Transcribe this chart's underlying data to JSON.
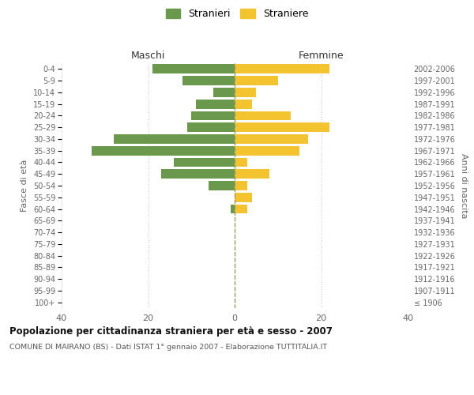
{
  "age_groups": [
    "100+",
    "95-99",
    "90-94",
    "85-89",
    "80-84",
    "75-79",
    "70-74",
    "65-69",
    "60-64",
    "55-59",
    "50-54",
    "45-49",
    "40-44",
    "35-39",
    "30-34",
    "25-29",
    "20-24",
    "15-19",
    "10-14",
    "5-9",
    "0-4"
  ],
  "birth_years": [
    "≤ 1906",
    "1907-1911",
    "1912-1916",
    "1917-1921",
    "1922-1926",
    "1927-1931",
    "1932-1936",
    "1937-1941",
    "1942-1946",
    "1947-1951",
    "1952-1956",
    "1957-1961",
    "1962-1966",
    "1967-1971",
    "1972-1976",
    "1977-1981",
    "1982-1986",
    "1987-1991",
    "1992-1996",
    "1997-2001",
    "2002-2006"
  ],
  "maschi": [
    0,
    0,
    0,
    0,
    0,
    0,
    0,
    0,
    1,
    0,
    6,
    17,
    14,
    33,
    28,
    11,
    10,
    9,
    5,
    12,
    19
  ],
  "femmine": [
    0,
    0,
    0,
    0,
    0,
    0,
    0,
    0,
    3,
    4,
    3,
    8,
    3,
    15,
    17,
    22,
    13,
    4,
    5,
    10,
    22
  ],
  "color_maschi": "#6a994e",
  "color_femmine": "#f4c430",
  "title": "Popolazione per cittadinanza straniera per età e sesso - 2007",
  "subtitle": "COMUNE DI MAIRANO (BS) - Dati ISTAT 1° gennaio 2007 - Elaborazione TUTTITALIA.IT",
  "xlabel_left": "Maschi",
  "xlabel_right": "Femmine",
  "ylabel_left": "Fasce di età",
  "ylabel_right": "Anni di nascita",
  "xlim": 40,
  "legend_stranieri": "Stranieri",
  "legend_straniere": "Straniere",
  "background_color": "#ffffff",
  "grid_color": "#cccccc"
}
